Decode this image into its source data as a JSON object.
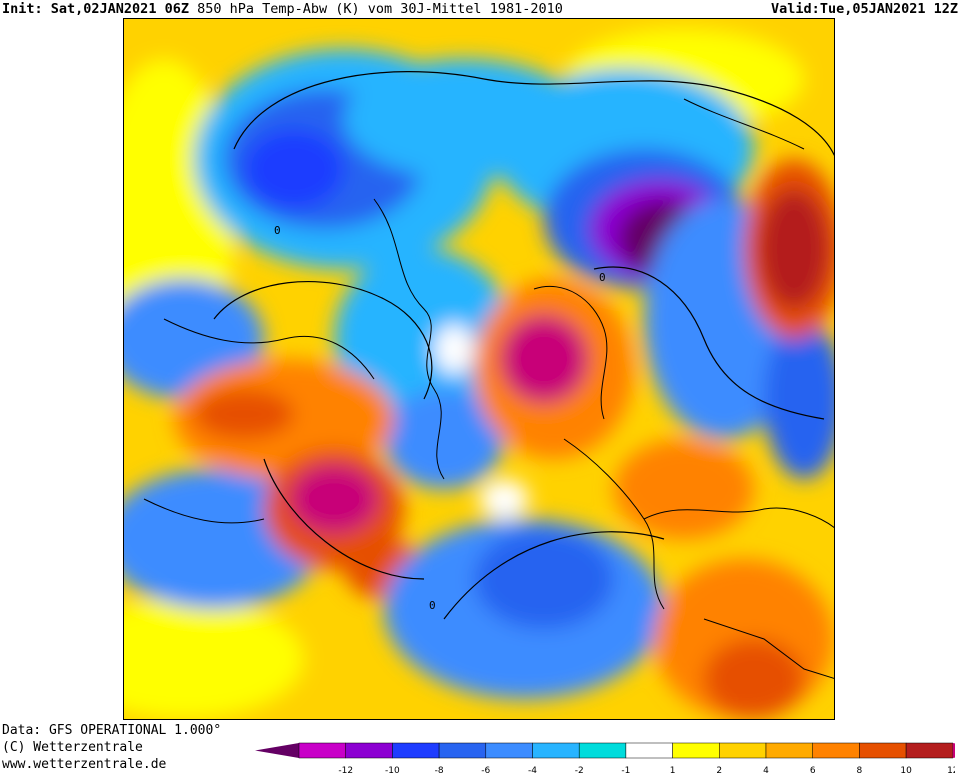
{
  "header": {
    "init_label": "Init:",
    "init_value": "Sat,02JAN2021 06Z",
    "title": "850 hPa Temp-Abw (K) vom 30J-Mittel 1981-2010",
    "valid_label": "Valid:",
    "valid_value": "Tue,05JAN2021 12Z"
  },
  "footer": {
    "line1": "Data: GFS OPERATIONAL 1.000°",
    "line2": "(C) Wetterzentrale",
    "line3": "www.wetterzentrale.de"
  },
  "map": {
    "projection": "north-polar-stereographic",
    "contour_label": "0"
  },
  "colorbar": {
    "tick_labels": [
      "-12",
      "-10",
      "-8",
      "-6",
      "-4",
      "-2",
      "-1",
      "1",
      "2",
      "4",
      "6",
      "8",
      "10",
      "12"
    ],
    "colors": [
      "#c800c8",
      "#8c00d2",
      "#1e3cff",
      "#2864f0",
      "#3c8cff",
      "#28b4ff",
      "#00dcdc",
      "#ffffff",
      "#ffff00",
      "#ffd200",
      "#ffaa00",
      "#ff8200",
      "#e65000",
      "#b41e1e",
      "#c80078"
    ],
    "low_end_color": "#640064",
    "high_end_color": "#c80078"
  }
}
